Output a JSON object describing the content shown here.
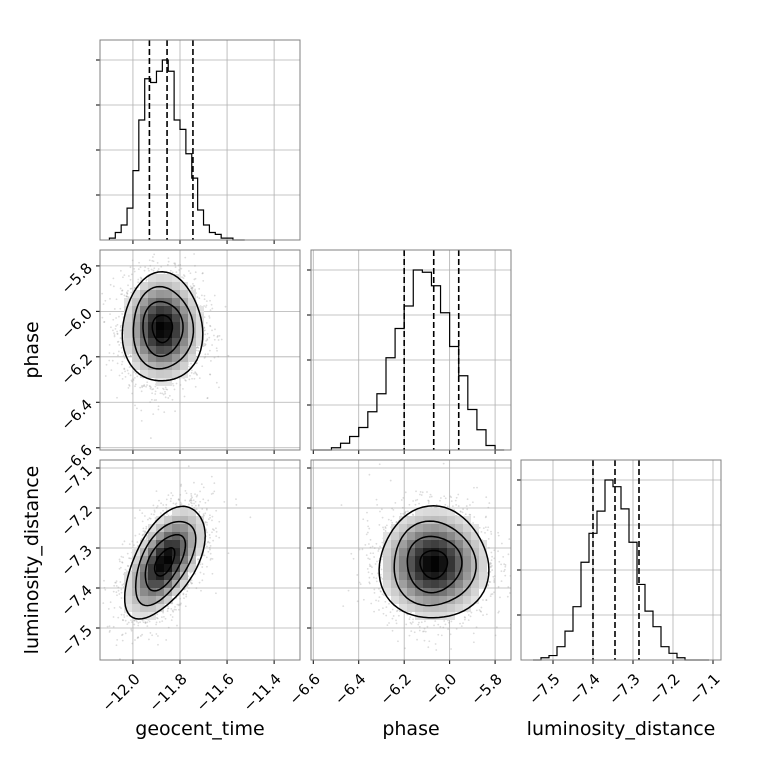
{
  "chart_data": {
    "type": "corner",
    "parameters": [
      "geocent_time",
      "phase",
      "luminosity_distance"
    ],
    "axis_labels": [
      "geocent_time",
      "phase",
      "luminosity_distance"
    ],
    "ranges": [
      [
        -12.14,
        -11.29
      ],
      [
        -6.61,
        -5.73
      ],
      [
        -7.58,
        -7.08
      ]
    ],
    "ticks": [
      [
        "−12.0",
        "−11.8",
        "−11.6",
        "−11.4"
      ],
      [
        "−6.6",
        "−6.4",
        "−6.2",
        "−6.0",
        "−5.8"
      ],
      [
        "−7.5",
        "−7.4",
        "−7.3",
        "−7.2",
        "−7.1"
      ]
    ],
    "tick_values": [
      [
        -12.0,
        -11.8,
        -11.6,
        -11.4
      ],
      [
        -6.6,
        -6.4,
        -6.2,
        -6.0,
        -5.8
      ],
      [
        -7.5,
        -7.4,
        -7.3,
        -7.2,
        -7.1
      ]
    ],
    "marginals": [
      {
        "param": "geocent_time",
        "bin_edges": [
          -12.1,
          -12.075,
          -12.05,
          -12.025,
          -12.0,
          -11.975,
          -11.95,
          -11.925,
          -11.9,
          -11.875,
          -11.85,
          -11.825,
          -11.8,
          -11.775,
          -11.75,
          -11.725,
          -11.7,
          -11.675,
          -11.65,
          -11.625,
          -11.6,
          -11.575,
          -11.55,
          -11.525
        ],
        "counts": [
          1,
          4,
          8,
          17,
          37,
          64,
          86,
          84,
          90,
          96,
          90,
          64,
          59,
          46,
          33,
          16,
          8,
          4,
          3,
          1,
          1,
          0,
          0
        ],
        "quantiles": [
          -11.93,
          -11.855,
          -11.745
        ]
      },
      {
        "param": "phase",
        "bin_edges": [
          -6.6,
          -6.56,
          -6.52,
          -6.48,
          -6.44,
          -6.4,
          -6.36,
          -6.32,
          -6.28,
          -6.24,
          -6.2,
          -6.16,
          -6.12,
          -6.08,
          -6.04,
          -6.0,
          -5.96,
          -5.92,
          -5.88,
          -5.84,
          -5.8,
          -5.76
        ],
        "counts": [
          0,
          0,
          1,
          3,
          6,
          10,
          17,
          25,
          41,
          54,
          64,
          80,
          79,
          73,
          61,
          46,
          33,
          18,
          9,
          2,
          0
        ],
        "quantiles": [
          -6.2,
          -6.07,
          -5.96
        ]
      },
      {
        "param": "luminosity_distance",
        "bin_edges": [
          -7.55,
          -7.53,
          -7.51,
          -7.49,
          -7.47,
          -7.45,
          -7.43,
          -7.41,
          -7.39,
          -7.37,
          -7.35,
          -7.33,
          -7.31,
          -7.29,
          -7.27,
          -7.25,
          -7.23,
          -7.21,
          -7.19,
          -7.17,
          -7.15,
          -7.13,
          -7.11
        ],
        "counts": [
          0,
          1,
          2,
          6,
          13,
          24,
          44,
          57,
          67,
          81,
          78,
          68,
          53,
          34,
          22,
          15,
          6,
          3,
          1,
          0,
          0,
          0
        ],
        "quantiles": [
          -7.4,
          -7.345,
          -7.285
        ]
      }
    ],
    "joint": [
      {
        "x_param": "geocent_time",
        "y_param": "phase",
        "center": [
          -11.875,
          -6.075
        ],
        "sigma": [
          0.085,
          0.12
        ],
        "correlation": 0.0,
        "contour_levels_sigma": [
          0.5,
          1.0,
          1.5,
          2.0
        ]
      },
      {
        "x_param": "geocent_time",
        "y_param": "luminosity_distance",
        "center": [
          -11.865,
          -7.335
        ],
        "sigma": [
          0.085,
          0.07
        ],
        "correlation": 0.55,
        "contour_levels_sigma": [
          0.5,
          1.0,
          1.5,
          2.0
        ]
      },
      {
        "x_param": "phase",
        "y_param": "luminosity_distance",
        "center": [
          -6.07,
          -7.34
        ],
        "sigma": [
          0.12,
          0.07
        ],
        "correlation": 0.0,
        "contour_levels_sigma": [
          0.5,
          1.0,
          1.5,
          2.0
        ]
      }
    ],
    "grid": true,
    "colors": {
      "line": "#000000",
      "grid": "#b0b0b0",
      "frame": "#808080",
      "scatter": "#9a9a9a",
      "density_dark": "#000000",
      "density_light": "#ffffff"
    }
  }
}
